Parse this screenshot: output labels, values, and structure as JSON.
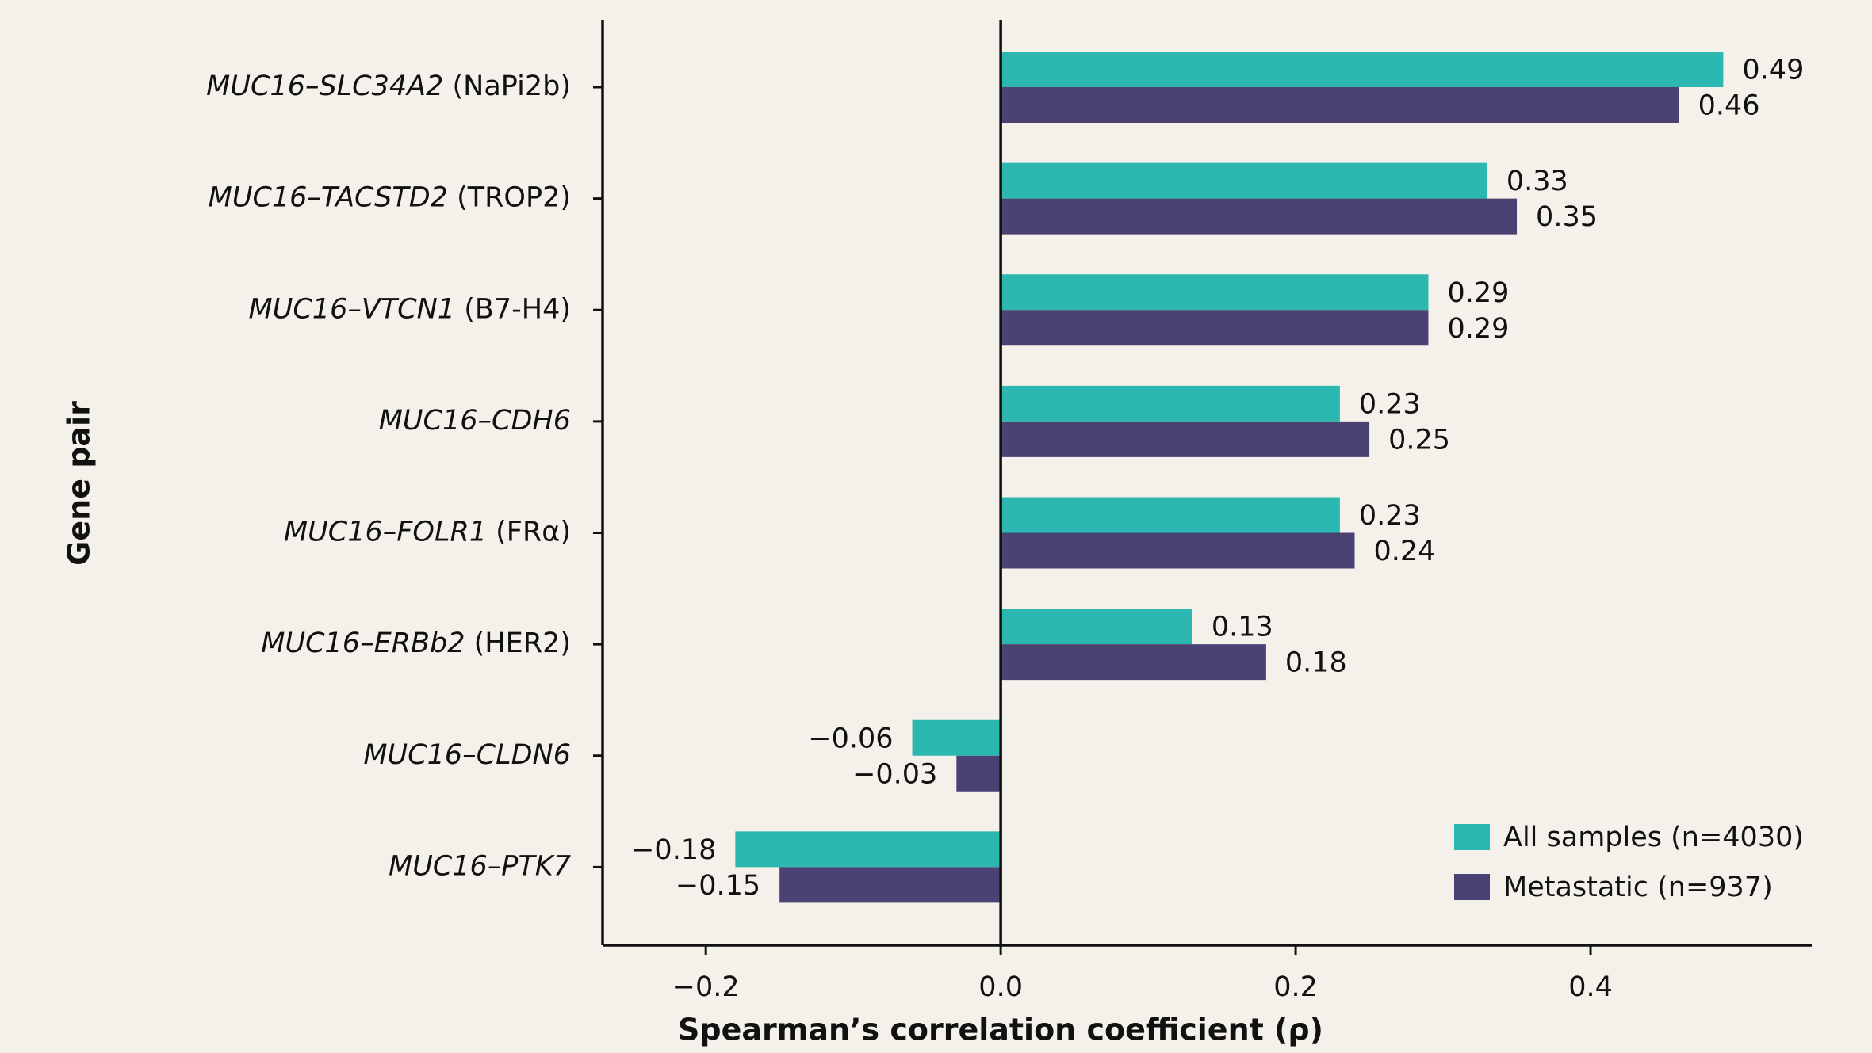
{
  "chart_data": {
    "type": "barh",
    "xlabel": "Spearman’s correlation coefficient (ρ)",
    "ylabel": "Gene pair",
    "categories": [
      "MUC16–SLC34A2 (NaPi2b)",
      "MUC16–TACSTD2 (TROP2)",
      "MUC16–VTCN1 (B7-H4)",
      "MUC16–CDH6",
      "MUC16–FOLR1 (FRα)",
      "MUC16–ERBb2 (HER2)",
      "MUC16–CLDN6",
      "MUC16–PTK7"
    ],
    "series": [
      {
        "name": "All samples (n=4030)",
        "color": "#2cb8b0",
        "values": [
          0.49,
          0.33,
          0.29,
          0.23,
          0.23,
          0.13,
          -0.06,
          -0.18
        ],
        "value_labels": [
          "0.49",
          "0.33",
          "0.29",
          "0.23",
          "0.23",
          "0.13",
          "−0.06",
          "−0.18"
        ]
      },
      {
        "name": "Metastatic (n=937)",
        "color": "#4a4272",
        "values": [
          0.46,
          0.35,
          0.29,
          0.25,
          0.24,
          0.18,
          -0.03,
          -0.15
        ],
        "value_labels": [
          "0.46",
          "0.35",
          "0.29",
          "0.25",
          "0.24",
          "0.18",
          "−0.03",
          "−0.15"
        ]
      }
    ],
    "xlim": [
      -0.27,
      0.55
    ],
    "xticks": [
      {
        "value": -0.2,
        "label": "−0.2"
      },
      {
        "value": 0,
        "label": "0.0"
      },
      {
        "value": 0.2,
        "label": "0.2"
      },
      {
        "value": 0.4,
        "label": "0.4"
      }
    ],
    "legend": "lower right"
  }
}
